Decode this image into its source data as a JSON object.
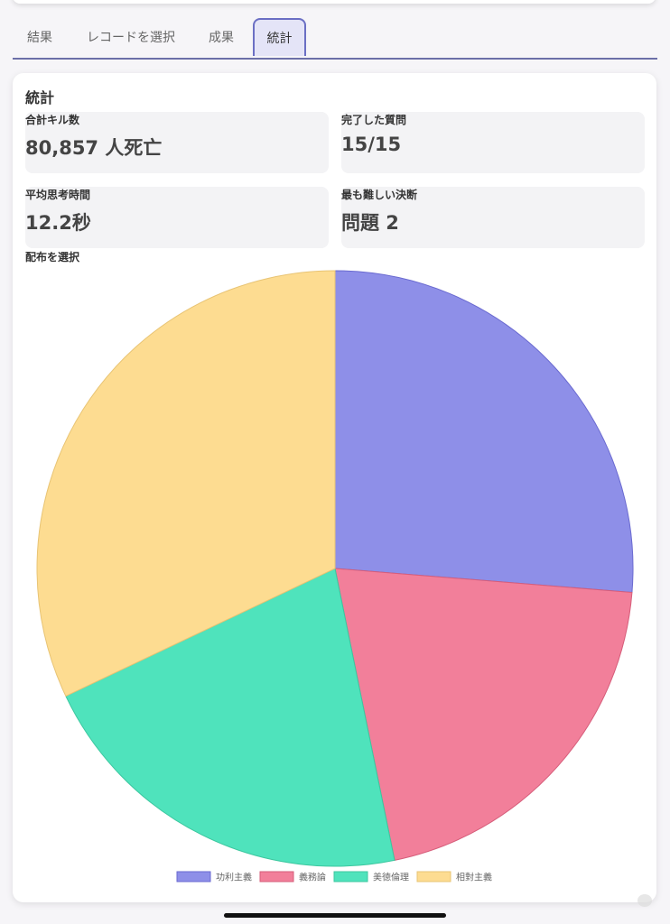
{
  "tabs": [
    {
      "label": "結果"
    },
    {
      "label": "レコードを選択"
    },
    {
      "label": "成果"
    },
    {
      "label": "統計"
    }
  ],
  "active_tab": "統計",
  "card": {
    "title": "統計",
    "stats": [
      {
        "label": "合計キル数",
        "value": "80,857 人死亡"
      },
      {
        "label": "完了した質問",
        "value": "15/15"
      },
      {
        "label": "平均思考時間",
        "value": "12.2秒"
      },
      {
        "label": "最も難しい決断",
        "value": "問題 2"
      }
    ],
    "chart_title": "配布を選択"
  },
  "chart_data": {
    "type": "pie",
    "title": "配布を選択",
    "categories": [
      "功利主義",
      "義務論",
      "美徳倫理",
      "相對主義"
    ],
    "values": [
      4.1,
      3.2,
      3.3,
      5.0
    ],
    "colors": [
      "#8e8fe8",
      "#f27f9a",
      "#4fe3bc",
      "#fddc91"
    ],
    "stroke_colors": [
      "#6a6ad0",
      "#d65d7a",
      "#3cc79f",
      "#e8c475"
    ],
    "legend_position": "bottom"
  }
}
